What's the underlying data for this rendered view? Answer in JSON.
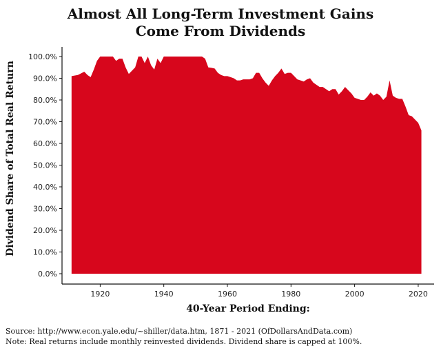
{
  "chart_data": {
    "type": "area",
    "title_line1": "Almost All Long-Term Investment Gains",
    "title_line2": "Come From Dividends",
    "xlabel": "40-Year Period Ending:",
    "ylabel": "Dividend Share of Total Real Return",
    "xlim": [
      1908,
      2025
    ],
    "ylim": [
      0,
      100
    ],
    "x_ticks": [
      1920,
      1940,
      1960,
      1980,
      2000,
      2020
    ],
    "x_tick_labels": [
      "1920",
      "1940",
      "1960",
      "1980",
      "2000",
      "2020"
    ],
    "y_ticks": [
      0,
      10,
      20,
      30,
      40,
      50,
      60,
      70,
      80,
      90,
      100
    ],
    "y_tick_labels": [
      "0.0%",
      "10.0%",
      "20.0%",
      "30.0%",
      "40.0%",
      "50.0%",
      "60.0%",
      "70.0%",
      "80.0%",
      "90.0%",
      "100.0%"
    ],
    "fill_color": "#d7061c",
    "series": [
      {
        "name": "Dividend share",
        "x": [
          1911,
          1913,
          1915,
          1916,
          1917,
          1918,
          1919,
          1920,
          1921,
          1922,
          1923,
          1924,
          1925,
          1926,
          1927,
          1928,
          1929,
          1930,
          1931,
          1932,
          1933,
          1934,
          1935,
          1936,
          1937,
          1938,
          1939,
          1940,
          1941,
          1945,
          1950,
          1952,
          1953,
          1954,
          1955,
          1956,
          1957,
          1958,
          1959,
          1960,
          1961,
          1962,
          1963,
          1964,
          1965,
          1966,
          1967,
          1968,
          1969,
          1970,
          1971,
          1972,
          1973,
          1974,
          1975,
          1976,
          1977,
          1978,
          1979,
          1980,
          1981,
          1982,
          1983,
          1984,
          1985,
          1986,
          1987,
          1988,
          1989,
          1990,
          1991,
          1992,
          1993,
          1994,
          1995,
          1996,
          1997,
          1998,
          1999,
          2000,
          2001,
          2002,
          2003,
          2004,
          2005,
          2006,
          2007,
          2008,
          2009,
          2010,
          2011,
          2012,
          2013,
          2014,
          2015,
          2016,
          2017,
          2018,
          2019,
          2020,
          2021
        ],
        "values": [
          91,
          91.5,
          93,
          91.5,
          90.5,
          94,
          98,
          100,
          100,
          100,
          100,
          100,
          98,
          99,
          99,
          95,
          92,
          93.5,
          95,
          100,
          100,
          97,
          100,
          96,
          94,
          99,
          97,
          100,
          100,
          100,
          100,
          100,
          99,
          95,
          94.8,
          94.5,
          92.5,
          91.5,
          91,
          91,
          90.5,
          90,
          89,
          89,
          89.5,
          89.5,
          89.5,
          90,
          92.5,
          92.5,
          90,
          88,
          86.5,
          89,
          91,
          92.5,
          94.5,
          92,
          92.5,
          92.5,
          91,
          89.5,
          89,
          88.5,
          89.5,
          90,
          88,
          87,
          86,
          86,
          85,
          84,
          85,
          85,
          82.5,
          84,
          86,
          84.5,
          83,
          81,
          80.5,
          80,
          80,
          81.5,
          83.5,
          82,
          83,
          82,
          80,
          81.5,
          89,
          82,
          81,
          80.5,
          80.5,
          77,
          73,
          72.5,
          71,
          69.5,
          66
        ]
      }
    ]
  },
  "footer": {
    "source": "Source:  http://www.econ.yale.edu/~shiller/data.htm, 1871 - 2021 (OfDollarsAndData.com)",
    "note": "Note:  Real returns include monthly reinvested dividends.  Dividend share is capped at 100%."
  }
}
